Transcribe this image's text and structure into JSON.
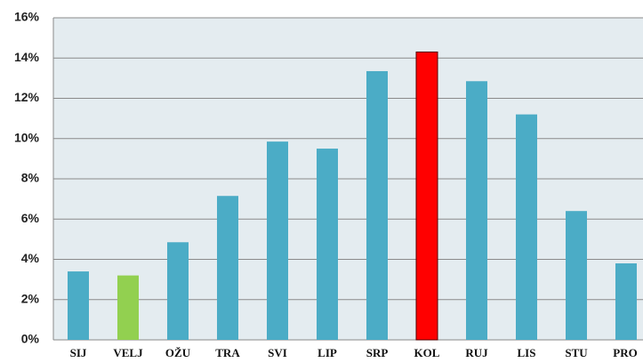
{
  "chart_data": {
    "type": "bar",
    "categories": [
      "SIJ",
      "VELJ",
      "OŽU",
      "TRA",
      "SVI",
      "LIP",
      "SRP",
      "KOL",
      "RUJ",
      "LIS",
      "STU",
      "PRO"
    ],
    "values": [
      3.4,
      3.2,
      4.85,
      7.15,
      9.85,
      9.5,
      13.35,
      14.3,
      12.85,
      11.2,
      6.4,
      3.8
    ],
    "colors": [
      "#4bacc6",
      "#92d050",
      "#4bacc6",
      "#4bacc6",
      "#4bacc6",
      "#4bacc6",
      "#4bacc6",
      "#ff0000",
      "#4bacc6",
      "#4bacc6",
      "#4bacc6",
      "#4bacc6"
    ],
    "ylim": [
      0,
      16
    ],
    "yticks": [
      {
        "value": 0,
        "label": "0%"
      },
      {
        "value": 2,
        "label": "2%"
      },
      {
        "value": 4,
        "label": "4%"
      },
      {
        "value": 6,
        "label": "6%"
      },
      {
        "value": 8,
        "label": "8%"
      },
      {
        "value": 10,
        "label": "10%"
      },
      {
        "value": 12,
        "label": "12%"
      },
      {
        "value": 14,
        "label": "14%"
      },
      {
        "value": 16,
        "label": "16%"
      }
    ],
    "grid": true
  }
}
